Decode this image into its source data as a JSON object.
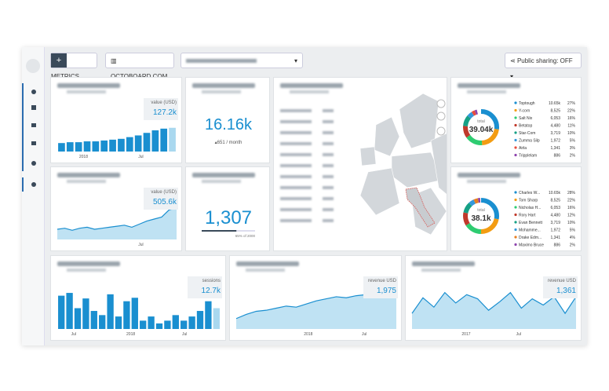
{
  "toolbar": {
    "metrics": "METRICS",
    "org": "OCTOBOARD.COM",
    "sharing": "Public sharing: OFF"
  },
  "widgets": [
    {
      "kind": "bars",
      "badge_label": "value (USD)",
      "badge_value": "127.2k",
      "x_labels": [
        "2018",
        "Jul"
      ],
      "color": "#1a8fd0",
      "last_color": "#a9d8ef",
      "ylim": [
        0,
        50
      ],
      "values": [
        10,
        11,
        11,
        12,
        12,
        13,
        14,
        15,
        17,
        19,
        22,
        25,
        27,
        28
      ]
    },
    {
      "kind": "area",
      "badge_label": "value (USD)",
      "badge_value": "505.6k",
      "x_labels": [
        "Jul"
      ],
      "color": "#1a8fd0",
      "fill": "#bfe2f3",
      "ylim": [
        0,
        80
      ],
      "values": [
        20,
        22,
        18,
        22,
        24,
        20,
        22,
        24,
        26,
        28,
        24,
        30,
        36,
        40,
        44,
        58,
        62
      ]
    },
    {
      "kind": "stat",
      "value": "16.16k",
      "sub": "▴651 / month"
    },
    {
      "kind": "gauge",
      "value": "1,307",
      "progress": 65,
      "progress_label": "65% of 2000"
    },
    {
      "kind": "map"
    },
    {
      "kind": "donut",
      "total_label": "total",
      "total": "39.04k",
      "items": [
        {
          "name": "Toptough",
          "value": "10.65k",
          "share": 27,
          "share_label": "27%",
          "color": "#1a8fd0"
        },
        {
          "name": "Y-corn",
          "value": "8,525",
          "share": 22,
          "share_label": "22%",
          "color": "#f39c12"
        },
        {
          "name": "Salt Nix",
          "value": "6,053",
          "share": 16,
          "share_label": "16%",
          "color": "#2ecc71"
        },
        {
          "name": "Betatop",
          "value": "4,480",
          "share": 11,
          "share_label": "11%",
          "color": "#c0392b"
        },
        {
          "name": "Star-Com",
          "value": "3,719",
          "share": 10,
          "share_label": "10%",
          "color": "#16a085"
        },
        {
          "name": "Zumma Silp",
          "value": "1,972",
          "share": 5,
          "share_label": "5%",
          "color": "#3498db"
        },
        {
          "name": "Airla",
          "value": "1,341",
          "share": 3,
          "share_label": "3%",
          "color": "#e74c3c"
        },
        {
          "name": "Tripplelam",
          "value": "886",
          "share": 2,
          "share_label": "2%",
          "color": "#8e44ad"
        }
      ]
    },
    {
      "kind": "donut",
      "total_label": "total",
      "total": "38.1k",
      "items": [
        {
          "name": "Charles W...",
          "value": "10.65k",
          "share": 28,
          "share_label": "28%",
          "color": "#1a8fd0"
        },
        {
          "name": "Tom Sharp",
          "value": "8,525",
          "share": 22,
          "share_label": "22%",
          "color": "#f39c12"
        },
        {
          "name": "Nicholas H...",
          "value": "6,053",
          "share": 16,
          "share_label": "16%",
          "color": "#2ecc71"
        },
        {
          "name": "Rory Hart",
          "value": "4,480",
          "share": 12,
          "share_label": "12%",
          "color": "#c0392b"
        },
        {
          "name": "Evan Bennett",
          "value": "3,719",
          "share": 10,
          "share_label": "10%",
          "color": "#16a085"
        },
        {
          "name": "Mohamme...",
          "value": "1,972",
          "share": 5,
          "share_label": "5%",
          "color": "#3498db"
        },
        {
          "name": "Drake Edm...",
          "value": "1,341",
          "share": 4,
          "share_label": "4%",
          "color": "#e67e22"
        },
        {
          "name": "Maximo Bruce",
          "value": "886",
          "share": 2,
          "share_label": "2%",
          "color": "#8e44ad"
        }
      ]
    },
    {
      "kind": "bars",
      "badge_label": "sessions",
      "badge_value": "12.7k",
      "x_labels": [
        "Jul",
        "2018",
        "Jul"
      ],
      "color": "#1a8fd0",
      "last_color": "#a9d8ef",
      "ylim": [
        0,
        60
      ],
      "values": [
        48,
        52,
        30,
        44,
        26,
        20,
        50,
        18,
        40,
        45,
        12,
        18,
        8,
        12,
        20,
        12,
        18,
        26,
        40,
        30
      ]
    },
    {
      "kind": "area",
      "badge_label": "revenue USD",
      "badge_value": "1,975",
      "x_labels": [
        "2018",
        "Jul"
      ],
      "color": "#1a8fd0",
      "fill": "#bfe2f3",
      "ylim": [
        0,
        80
      ],
      "values": [
        20,
        28,
        34,
        36,
        40,
        44,
        42,
        48,
        54,
        58,
        62,
        60,
        64,
        66,
        68,
        62,
        64
      ]
    },
    {
      "kind": "area",
      "badge_label": "revenue USD",
      "badge_value": "1,361",
      "x_labels": [
        "2017",
        "Jul"
      ],
      "color": "#1a8fd0",
      "fill": "#bfe2f3",
      "ylim": [
        0,
        80
      ],
      "values": [
        30,
        60,
        42,
        70,
        50,
        66,
        58,
        36,
        52,
        70,
        40,
        58,
        46,
        62,
        30,
        62
      ]
    }
  ]
}
